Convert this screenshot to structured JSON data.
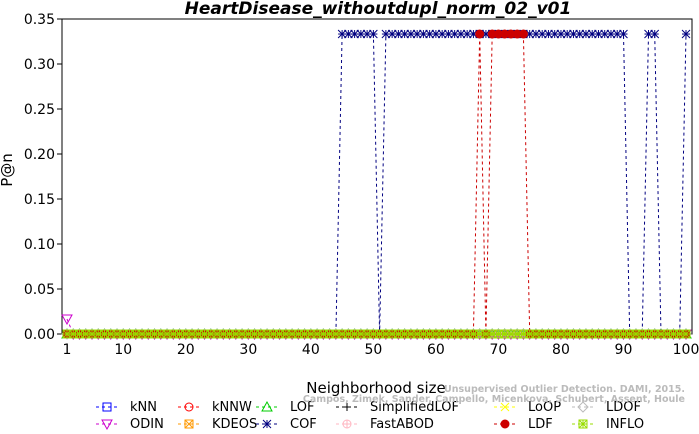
{
  "chart_data": {
    "type": "line",
    "title": "HeartDisease_withoutdupl_norm_02_v01",
    "xlabel": "Neighborhood size",
    "ylabel": "P@n",
    "xlim": [
      1,
      100
    ],
    "ylim": [
      0,
      0.35
    ],
    "xticks": [
      1,
      10,
      20,
      30,
      40,
      50,
      60,
      70,
      80,
      90,
      100
    ],
    "yticks": [
      "0.00",
      "0.05",
      "0.10",
      "0.15",
      "0.20",
      "0.25",
      "0.30",
      "0.35"
    ],
    "grid": false,
    "legend_position": "bottom",
    "default_value": 0,
    "series": [
      {
        "name": "kNN",
        "color": "#0000ff",
        "marker": "square",
        "nonzero": []
      },
      {
        "name": "kNNW",
        "color": "#ff0000",
        "marker": "circle",
        "nonzero": []
      },
      {
        "name": "LOF",
        "color": "#00cc00",
        "marker": "triangle-up",
        "nonzero": []
      },
      {
        "name": "SimplifiedLOF",
        "color": "#000000",
        "marker": "plus",
        "nonzero": []
      },
      {
        "name": "LoOP",
        "color": "#ffff00",
        "marker": "x",
        "nonzero": []
      },
      {
        "name": "LDOF",
        "color": "#bbbbbb",
        "marker": "diamond",
        "nonzero": []
      },
      {
        "name": "ODIN",
        "color": "#cc00cc",
        "marker": "triangle-down",
        "nonzero": [
          [
            1,
            0.0167
          ]
        ]
      },
      {
        "name": "KDEOS",
        "color": "#ff9900",
        "marker": "square-x",
        "nonzero": []
      },
      {
        "name": "COF",
        "color": "#000080",
        "marker": "asterisk",
        "nonzero": [
          [
            45,
            0.3333
          ],
          [
            46,
            0.3333
          ],
          [
            47,
            0.3333
          ],
          [
            48,
            0.3333
          ],
          [
            49,
            0.3333
          ],
          [
            50,
            0.3333
          ],
          [
            52,
            0.3333
          ],
          [
            53,
            0.3333
          ],
          [
            54,
            0.3333
          ],
          [
            55,
            0.3333
          ],
          [
            56,
            0.3333
          ],
          [
            57,
            0.3333
          ],
          [
            58,
            0.3333
          ],
          [
            59,
            0.3333
          ],
          [
            60,
            0.3333
          ],
          [
            61,
            0.3333
          ],
          [
            62,
            0.3333
          ],
          [
            63,
            0.3333
          ],
          [
            64,
            0.3333
          ],
          [
            65,
            0.3333
          ],
          [
            66,
            0.3333
          ],
          [
            67,
            0.3333
          ],
          [
            68,
            0.3333
          ],
          [
            69,
            0.3333
          ],
          [
            70,
            0.3333
          ],
          [
            71,
            0.3333
          ],
          [
            72,
            0.3333
          ],
          [
            73,
            0.3333
          ],
          [
            74,
            0.3333
          ],
          [
            75,
            0.3333
          ],
          [
            76,
            0.3333
          ],
          [
            77,
            0.3333
          ],
          [
            78,
            0.3333
          ],
          [
            79,
            0.3333
          ],
          [
            80,
            0.3333
          ],
          [
            81,
            0.3333
          ],
          [
            82,
            0.3333
          ],
          [
            83,
            0.3333
          ],
          [
            84,
            0.3333
          ],
          [
            85,
            0.3333
          ],
          [
            86,
            0.3333
          ],
          [
            87,
            0.3333
          ],
          [
            88,
            0.3333
          ],
          [
            89,
            0.3333
          ],
          [
            90,
            0.3333
          ],
          [
            94,
            0.3333
          ],
          [
            95,
            0.3333
          ],
          [
            100,
            0.3333
          ]
        ]
      },
      {
        "name": "FastABOD",
        "color": "#ffb6c1",
        "marker": "circle-plus",
        "nonzero": []
      },
      {
        "name": "LDF",
        "color": "#cc0000",
        "marker": "circle-filled",
        "nonzero": [
          [
            67,
            0.3333
          ],
          [
            69,
            0.3333
          ],
          [
            70,
            0.3333
          ],
          [
            71,
            0.3333
          ],
          [
            72,
            0.3333
          ],
          [
            73,
            0.3333
          ],
          [
            74,
            0.3333
          ]
        ]
      },
      {
        "name": "INFLO",
        "color": "#99dd00",
        "marker": "square-cross",
        "nonzero": []
      }
    ]
  },
  "watermark": "Campos, Zimek, Sander, Campello, Micenkova, Schubert, Assent, Houle",
  "watermark_top": "Unsupervised Outlier Detection. DAMI, 2015."
}
